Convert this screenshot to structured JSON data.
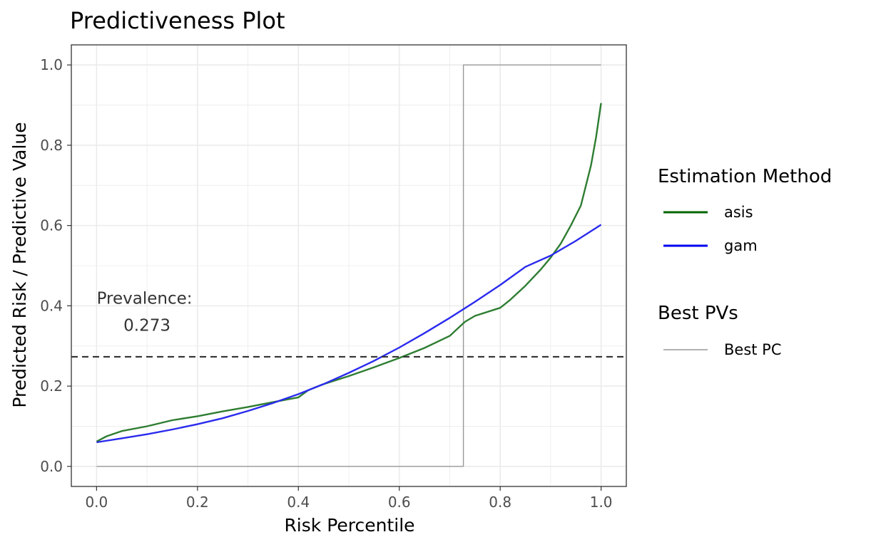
{
  "chart_data": {
    "type": "line",
    "title": "Predictiveness Plot",
    "xlabel": "Risk Percentile",
    "ylabel": "Predicted Risk / Predictive Value",
    "xlim": [
      -0.05,
      1.05
    ],
    "ylim": [
      -0.05,
      1.05
    ],
    "x_ticks": [
      "0.0",
      "0.2",
      "0.4",
      "0.6",
      "0.8",
      "1.0"
    ],
    "y_ticks": [
      "0.0",
      "0.2",
      "0.4",
      "0.6",
      "0.8",
      "1.0"
    ],
    "grid": true,
    "legend_position": "right",
    "legends": [
      {
        "title": "Estimation Method",
        "entries": [
          {
            "label": "asis",
            "color": "#006400"
          },
          {
            "label": "gam",
            "color": "#0000ee"
          }
        ]
      },
      {
        "title": "Best PVs",
        "entries": [
          {
            "label": "Best PC",
            "color": "#999999"
          }
        ]
      }
    ],
    "series": [
      {
        "name": "asis",
        "color": "#2e7d32",
        "x": [
          0,
          0.02,
          0.05,
          0.1,
          0.15,
          0.2,
          0.25,
          0.3,
          0.35,
          0.4,
          0.42,
          0.45,
          0.5,
          0.55,
          0.6,
          0.65,
          0.7,
          0.73,
          0.75,
          0.8,
          0.82,
          0.85,
          0.88,
          0.9,
          0.92,
          0.94,
          0.96,
          0.97,
          0.98,
          0.99,
          1.0
        ],
        "y": [
          0.062,
          0.075,
          0.088,
          0.1,
          0.115,
          0.125,
          0.137,
          0.148,
          0.16,
          0.172,
          0.19,
          0.205,
          0.225,
          0.247,
          0.27,
          0.295,
          0.325,
          0.36,
          0.375,
          0.395,
          0.415,
          0.45,
          0.49,
          0.52,
          0.555,
          0.6,
          0.65,
          0.7,
          0.75,
          0.82,
          0.905
        ]
      },
      {
        "name": "gam",
        "color": "#2a2aee",
        "x": [
          0,
          0.05,
          0.1,
          0.15,
          0.2,
          0.25,
          0.3,
          0.35,
          0.4,
          0.45,
          0.5,
          0.55,
          0.6,
          0.65,
          0.7,
          0.75,
          0.8,
          0.85,
          0.9,
          0.95,
          1.0
        ],
        "y": [
          0.06,
          0.07,
          0.08,
          0.092,
          0.105,
          0.12,
          0.138,
          0.158,
          0.18,
          0.205,
          0.233,
          0.263,
          0.296,
          0.332,
          0.37,
          0.41,
          0.452,
          0.497,
          0.525,
          0.562,
          0.602
        ]
      },
      {
        "name": "Best PC",
        "color": "#999999",
        "step": true,
        "x": [
          0,
          0.727,
          0.727,
          1.0
        ],
        "y": [
          0,
          0,
          1,
          1
        ]
      }
    ],
    "hline": {
      "y": 0.273,
      "style": "dashed",
      "color": "#333333"
    },
    "annotations": [
      {
        "text": "Prevalence:",
        "x": 0.095,
        "y": 0.405
      },
      {
        "text": "0.273",
        "x": 0.1,
        "y": 0.338
      }
    ]
  }
}
